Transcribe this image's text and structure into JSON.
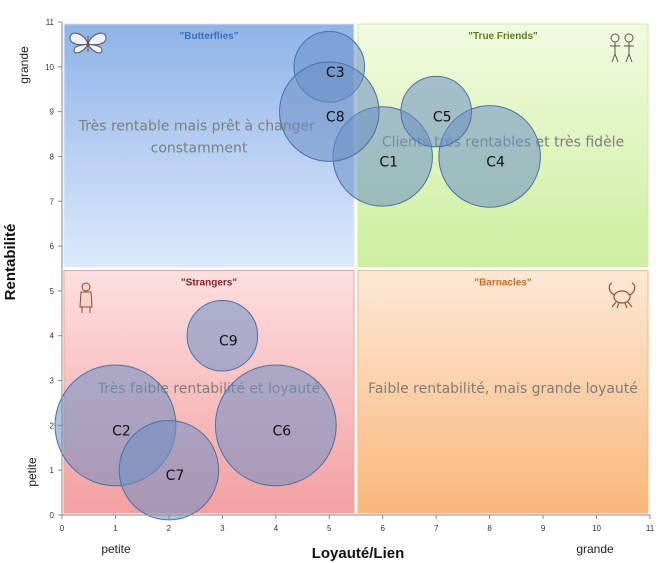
{
  "chart_data": {
    "type": "bubble",
    "xlabel": "Loyauté/Lien",
    "ylabel": "Rentabilité",
    "xlim": [
      0,
      11
    ],
    "ylim": [
      0,
      11
    ],
    "x_ticks": [
      "0",
      "1",
      "2",
      "3",
      "4",
      "5",
      "6",
      "7",
      "8",
      "9",
      "10",
      "11"
    ],
    "y_ticks": [
      "0",
      "1",
      "2",
      "3",
      "4",
      "5",
      "6",
      "7",
      "8",
      "9",
      "10",
      "11"
    ],
    "x_low_label": "petite",
    "x_high_label": "grande",
    "y_low_label": "petite",
    "y_high_label": "grande",
    "quadrants": [
      {
        "key": "tl",
        "title": "\"Butterflies\"",
        "description_lines": [
          "Très rentable mais prêt à changer",
          "constamment"
        ],
        "x_range": [
          0,
          5.5
        ],
        "y_range": [
          5.5,
          11
        ],
        "color_top": "#8fb4e8",
        "color_bottom": "#dce9fb",
        "title_color": "#3a6fbf",
        "icon": "butterfly-icon"
      },
      {
        "key": "tr",
        "title": "\"True Friends\"",
        "description_lines": [
          "Clients très rentables et très fidèle"
        ],
        "x_range": [
          5.5,
          11
        ],
        "y_range": [
          5.5,
          11
        ],
        "color_top": "#f1fbe0",
        "color_bottom": "#cdef9e",
        "title_color": "#5d7f1a",
        "icon": "friends-icon"
      },
      {
        "key": "bl",
        "title": "\"Strangers\"",
        "description_lines": [
          "Très faible rentabilité et loyauté"
        ],
        "x_range": [
          0,
          5.5
        ],
        "y_range": [
          0,
          5.5
        ],
        "color_top": "#fde0e0",
        "color_bottom": "#f3a0a0",
        "title_color": "#8b2020",
        "icon": "stranger-icon"
      },
      {
        "key": "br",
        "title": "\"Barnacles\"",
        "description_lines": [
          "Faible rentabilité, mais grande loyauté"
        ],
        "x_range": [
          5.5,
          11
        ],
        "y_range": [
          0,
          5.5
        ],
        "color_top": "#fde9d6",
        "color_bottom": "#f9b77a",
        "title_color": "#d2691e",
        "icon": "crab-icon"
      }
    ],
    "bubble_color": "#6b8fc4",
    "bubbles": [
      {
        "label": "C1",
        "x": 6,
        "y": 8,
        "r": 0.93
      },
      {
        "label": "C2",
        "x": 1,
        "y": 2,
        "r": 1.13
      },
      {
        "label": "C3",
        "x": 5,
        "y": 10,
        "r": 0.66
      },
      {
        "label": "C4",
        "x": 8,
        "y": 8,
        "r": 0.95
      },
      {
        "label": "C5",
        "x": 7,
        "y": 9,
        "r": 0.66
      },
      {
        "label": "C6",
        "x": 4,
        "y": 2,
        "r": 1.13
      },
      {
        "label": "C7",
        "x": 2,
        "y": 1,
        "r": 0.93
      },
      {
        "label": "C8",
        "x": 5,
        "y": 9,
        "r": 0.93
      },
      {
        "label": "C9",
        "x": 3,
        "y": 4,
        "r": 0.66
      }
    ]
  }
}
